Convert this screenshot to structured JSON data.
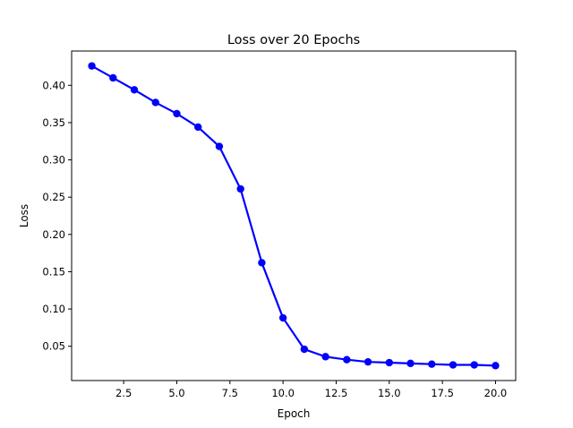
{
  "chart_data": {
    "type": "line",
    "title": "Loss over 20 Epochs",
    "xlabel": "Epoch",
    "ylabel": "Loss",
    "xlim": [
      0.05,
      20.95
    ],
    "ylim": [
      0.004,
      0.446
    ],
    "xticks": [
      2.5,
      5.0,
      7.5,
      10.0,
      12.5,
      15.0,
      17.5,
      20.0
    ],
    "xtick_labels": [
      "2.5",
      "5.0",
      "7.5",
      "10.0",
      "12.5",
      "15.0",
      "17.5",
      "20.0"
    ],
    "yticks": [
      0.05,
      0.1,
      0.15,
      0.2,
      0.25,
      0.3,
      0.35,
      0.4
    ],
    "ytick_labels": [
      "0.05",
      "0.10",
      "0.15",
      "0.20",
      "0.25",
      "0.30",
      "0.35",
      "0.40"
    ],
    "grid": false,
    "color": "#0000ff",
    "marker": "circle",
    "x": [
      1,
      2,
      3,
      4,
      5,
      6,
      7,
      8,
      9,
      10,
      11,
      12,
      13,
      14,
      15,
      16,
      17,
      18,
      19,
      20
    ],
    "y": [
      0.426,
      0.41,
      0.394,
      0.377,
      0.362,
      0.344,
      0.318,
      0.261,
      0.162,
      0.088,
      0.046,
      0.036,
      0.032,
      0.029,
      0.028,
      0.027,
      0.026,
      0.025,
      0.025,
      0.024
    ]
  }
}
